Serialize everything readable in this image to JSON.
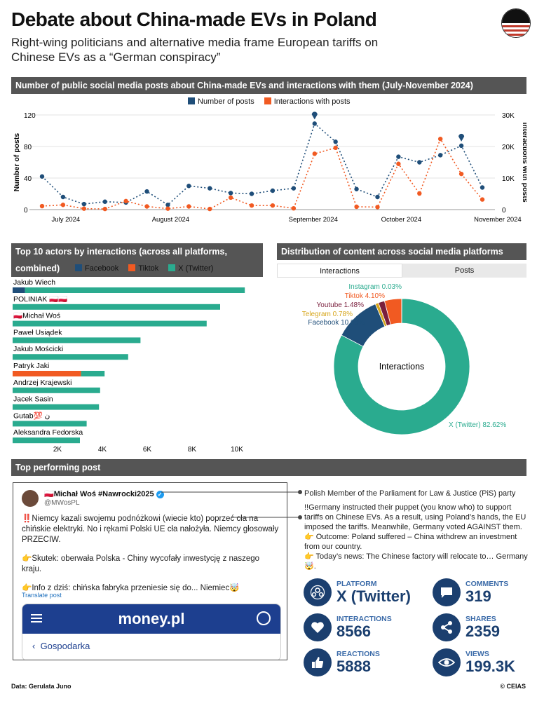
{
  "header": {
    "title": "Debate about China-made EVs in Poland",
    "subtitle": "Right-wing politicians and alternative media frame European tariffs on Chinese EVs as a “German conspiracy”"
  },
  "colors": {
    "posts": "#1f4e79",
    "interactions": "#f15a22",
    "x": "#2aab8f",
    "facebook": "#1f4e79",
    "tiktok": "#f15a22",
    "header_bg": "#555555"
  },
  "sections": {
    "timeline": "Number of public social media posts about China-made EVs and interactions with them (July-November 2024)",
    "actors": "Top 10 actors by interactions (across all platforms, combined)",
    "distribution": "Distribution of content across social media platforms",
    "top_post": "Top performing post"
  },
  "timeline_legend": {
    "posts": "Number of posts",
    "interactions": "Interactions with posts"
  },
  "actors_legend": {
    "facebook": "Facebook",
    "tiktok": "Tiktok",
    "x": "X (Twitter)"
  },
  "tabs": {
    "interactions": "Interactions",
    "posts": "Posts"
  },
  "chart_data": [
    {
      "type": "line",
      "xlabel": "",
      "ylabel": "Number of posts",
      "y2label": "Interactions with posts",
      "x_ticks": [
        "July 2024",
        "August 2024",
        "September 2024",
        "October 2024",
        "November 2024"
      ],
      "y_ticks": [
        "0",
        "40",
        "80",
        "120"
      ],
      "y2_ticks": [
        "0",
        "10K",
        "20K",
        "30K"
      ],
      "ylim": [
        0,
        120
      ],
      "y2lim": [
        0,
        30000
      ],
      "series": [
        {
          "name": "Number of posts",
          "axis": "left",
          "values": [
            42,
            16,
            7,
            10,
            9,
            23,
            6,
            30,
            27,
            21,
            20,
            24,
            27,
            109,
            86,
            26,
            16,
            67,
            60,
            69,
            81,
            28
          ]
        },
        {
          "name": "Interactions with posts",
          "axis": "right",
          "values": [
            1100,
            1500,
            300,
            200,
            2700,
            1000,
            300,
            1000,
            200,
            3800,
            1300,
            1300,
            400,
            17700,
            19600,
            900,
            800,
            14500,
            5100,
            22400,
            11300,
            3200
          ]
        }
      ]
    },
    {
      "type": "bar",
      "orientation": "horizontal",
      "stacked": true,
      "categories": [
        "Jakub Wiech",
        "POLINIAK 🇵🇱🇵🇱",
        "🇵🇱Michał Woś",
        "Paweł Usiądek",
        "Jakub Mościcki",
        "Patryk Jaki",
        "Andrzej Krajewski",
        "Jacek Sasin",
        "Gutab💯 ن",
        "Aleksandra Fedorska"
      ],
      "x_ticks": [
        "2K",
        "4K",
        "6K",
        "8K",
        "10K"
      ],
      "xlim": [
        0,
        11000
      ],
      "series": [
        {
          "name": "Facebook",
          "values": [
            550,
            0,
            0,
            0,
            0,
            0,
            0,
            0,
            0,
            0
          ]
        },
        {
          "name": "Tiktok",
          "values": [
            0,
            0,
            0,
            0,
            0,
            3050,
            0,
            0,
            0,
            0
          ]
        },
        {
          "name": "X (Twitter)",
          "values": [
            9800,
            9250,
            8650,
            5700,
            5150,
            1050,
            3900,
            3850,
            3300,
            3000
          ]
        }
      ]
    },
    {
      "type": "pie",
      "center_label": "Interactions",
      "categories": [
        "X (Twitter)",
        "Facebook",
        "Telegram",
        "Youtube",
        "Tiktok",
        "Instagram"
      ],
      "values": [
        82.62,
        10.98,
        0.78,
        1.48,
        4.1,
        0.03
      ],
      "labels": [
        "X (Twitter) 82.62%",
        "Facebook 10.98%",
        "Telegram 0.78%",
        "Youtube 1.48%",
        "Tiktok 4.10%",
        "Instagram 0.03%"
      ],
      "colors": [
        "#2aab8f",
        "#1f4e79",
        "#d6a51a",
        "#7a1f3d",
        "#f15a22",
        "#2aab8f"
      ]
    }
  ],
  "tweet": {
    "name": "🇵🇱Michał Woś #Nawrocki2025",
    "check": "✓",
    "handle": "@MWosPL",
    "p1": "‼️Niemcy kazali swojemu podnóżkowi (wiecie kto) poprzeć cła na chińskie elektryki. No i rękami Polski UE cła nałożyła. Niemcy głosowały PRZECIW.",
    "p2": "👉Skutek: oberwała Polska - Chiny wycofały inwestycję z naszego kraju.",
    "p3": "👉Info z dziś: chińska fabryka przeniesie się do... Niemiec🤯",
    "translate": "Translate post",
    "card_logo": "money.pl",
    "card_section": "Gospodarka"
  },
  "annotations": {
    "author": "Polish Member of the Parliament for Law & Justice (PiS) party",
    "translation": "!!Germany instructed their puppet (you know who) to support tariffs on Chinese EVs. As a result, using Poland’s hands, the EU imposed the tariffs. Meanwhile, Germany voted AGAINST them.\n👉 Outcome: Poland suffered – China withdrew an investment from our country.\n👉 Today’s news: The Chinese factory will relocate to… Germany🤯."
  },
  "stats": [
    {
      "label": "PLATFORM",
      "value": "X (Twitter)",
      "icon": "people-icon"
    },
    {
      "label": "COMMENTS",
      "value": "319",
      "icon": "comment-icon"
    },
    {
      "label": "INTERACTIONS",
      "value": "8566",
      "icon": "heart-icon"
    },
    {
      "label": "SHARES",
      "value": "2359",
      "icon": "share-icon"
    },
    {
      "label": "REACTIONS",
      "value": "5888",
      "icon": "thumbs-up-icon"
    },
    {
      "label": "VIEWS",
      "value": "199.3K",
      "icon": "eye-icon"
    }
  ],
  "footer": {
    "source": "Data: Gerulata Juno",
    "credit": "© CEIAS"
  }
}
